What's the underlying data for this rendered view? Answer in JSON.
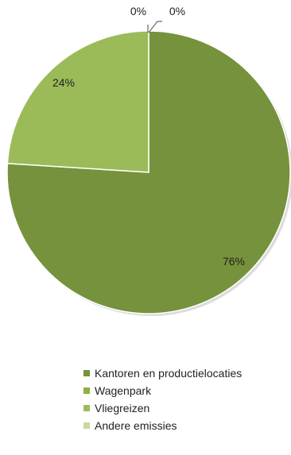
{
  "chart_data": {
    "type": "pie",
    "categories": [
      "Kantoren en productielocaties",
      "Wagenpark",
      "Vliegreizen",
      "Andere emissies"
    ],
    "values": [
      76,
      0,
      24,
      0
    ],
    "labels": [
      "76%",
      "0%",
      "24%",
      "0%"
    ],
    "colors": [
      "#76923c",
      "#8db040",
      "#9bbb59",
      "#c4d9a2"
    ],
    "start_angle_deg": 0,
    "direction": "clockwise",
    "legend_position": "bottom"
  }
}
